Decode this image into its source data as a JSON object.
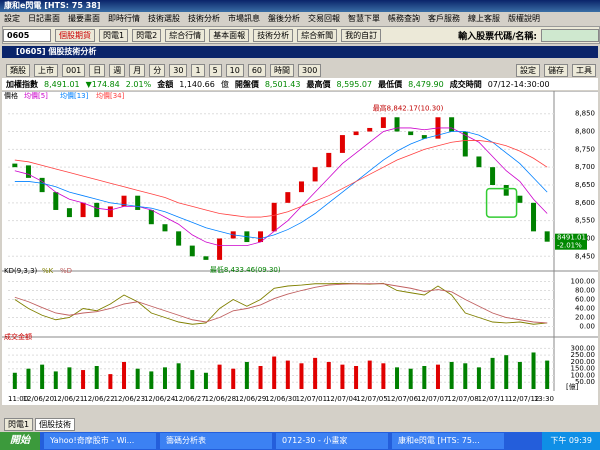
{
  "window": {
    "title": "康和e閃電 [HTS: 75 38]"
  },
  "menu": [
    "設定",
    "日記畫面",
    "撮要畫面",
    "即時行情",
    "技術選股",
    "技術分析",
    "市場訊息",
    "盤後分析",
    "交易回報",
    "智慧下單",
    "帳務查詢",
    "客戶服務",
    "線上客服",
    "版權說明"
  ],
  "toolbar": {
    "code": "0605",
    "buttons": [
      "個股期貨",
      "閃電1",
      "閃電2",
      "綜合行情",
      "基本面報",
      "技術分析",
      "綜合新聞",
      "我的自訂"
    ],
    "search_label": "輸入股票代碼/名稱:"
  },
  "panel": {
    "title": "[0605] 個股技術分析",
    "controls": [
      "類股",
      "上市",
      "001",
      "日",
      "週",
      "月",
      "分",
      "30",
      "1",
      "5",
      "10",
      "60",
      "時間",
      "300"
    ],
    "actions": [
      "設定",
      "儲存",
      "工具"
    ]
  },
  "quote": {
    "name": "加權指數",
    "price": "8,491.01",
    "change": "▼174.84",
    "pct": "2.01%",
    "amount_label": "金額",
    "amount": "1,140.66",
    "unit": "億",
    "open_label": "開盤價",
    "open": "8,501.43",
    "high_label": "最高價",
    "high": "8,595.07",
    "low_label": "最低價",
    "low": "8,479.90",
    "time_label": "成交時間",
    "time": "07/12-14:30:00"
  },
  "chart_data": [
    {
      "type": "candlestick",
      "legend_title": "價格",
      "open": [
        8710,
        8705,
        8670,
        8630,
        8585,
        8560,
        8600,
        8560,
        8590,
        8620,
        8580,
        8540,
        8520,
        8480,
        8450,
        8440,
        8500,
        8520,
        8490,
        8520,
        8600,
        8630,
        8660,
        8700,
        8740,
        8790,
        8800,
        8810,
        8840,
        8800,
        8790,
        8780,
        8840,
        8800,
        8730,
        8700,
        8650,
        8620,
        8600,
        8520
      ],
      "close": [
        8700,
        8670,
        8630,
        8580,
        8560,
        8600,
        8560,
        8590,
        8620,
        8580,
        8540,
        8520,
        8480,
        8450,
        8440,
        8500,
        8520,
        8490,
        8520,
        8600,
        8630,
        8660,
        8700,
        8740,
        8790,
        8800,
        8810,
        8840,
        8800,
        8790,
        8780,
        8840,
        8800,
        8730,
        8700,
        8650,
        8620,
        8600,
        8520,
        8491
      ],
      "series": [
        {
          "name": "均價[5]",
          "color": "#cc00cc",
          "values": [
            8690,
            8680,
            8660,
            8630,
            8610,
            8600,
            8585,
            8580,
            8590,
            8590,
            8580,
            8560,
            8540,
            8510,
            8490,
            8480,
            8480,
            8480,
            8490,
            8520,
            8550,
            8590,
            8630,
            8670,
            8710,
            8740,
            8770,
            8800,
            8810,
            8810,
            8805,
            8810,
            8810,
            8790,
            8770,
            8730,
            8690,
            8660,
            8610,
            8570
          ]
        },
        {
          "name": "均價[13]",
          "color": "#0080ff",
          "values": [
            8660,
            8660,
            8655,
            8645,
            8630,
            8620,
            8610,
            8600,
            8595,
            8590,
            8585,
            8575,
            8560,
            8545,
            8530,
            8520,
            8510,
            8505,
            8500,
            8510,
            8525,
            8545,
            8570,
            8600,
            8630,
            8660,
            8690,
            8720,
            8745,
            8765,
            8780,
            8790,
            8800,
            8800,
            8790,
            8770,
            8740,
            8710,
            8670,
            8630
          ]
        },
        {
          "name": "均價[34]",
          "color": "#ff4040",
          "values": [
            8720,
            8715,
            8705,
            8695,
            8685,
            8675,
            8665,
            8655,
            8645,
            8635,
            8625,
            8615,
            8600,
            8590,
            8580,
            8570,
            8565,
            8560,
            8560,
            8565,
            8575,
            8590,
            8605,
            8620,
            8640,
            8660,
            8680,
            8700,
            8720,
            8735,
            8750,
            8760,
            8770,
            8775,
            8775,
            8770,
            8760,
            8745,
            8725,
            8700
          ]
        }
      ],
      "ylim": [
        8420,
        8880
      ],
      "yticks": [
        {
          "value": 8450,
          "label": "8,450"
        },
        {
          "value": 8500,
          "label": "8,500"
        },
        {
          "value": 8550,
          "label": "8,550"
        },
        {
          "value": 8600,
          "label": "8,600"
        },
        {
          "value": 8650,
          "label": "8,650"
        },
        {
          "value": 8700,
          "label": "8,700"
        },
        {
          "value": 8750,
          "label": "8,750"
        },
        {
          "value": 8800,
          "label": "8,800"
        },
        {
          "value": 8850,
          "label": "8,850"
        }
      ],
      "annotations": [
        {
          "value": 8842.17,
          "label": "最高8,842.17(10.30)"
        },
        {
          "value": 8433.46,
          "label": "最低8,433.46(09.30)"
        }
      ],
      "last_label": [
        "8491.01",
        "-2.01%"
      ]
    },
    {
      "type": "line",
      "title": "KD(9,3,3)",
      "series": [
        {
          "name": "%K",
          "color": "#808000",
          "values": [
            60,
            40,
            25,
            15,
            20,
            40,
            35,
            50,
            70,
            55,
            30,
            20,
            10,
            5,
            8,
            40,
            60,
            45,
            60,
            85,
            90,
            92,
            95,
            95,
            96,
            95,
            94,
            96,
            80,
            75,
            70,
            90,
            70,
            30,
            20,
            10,
            8,
            10,
            5,
            8
          ]
        },
        {
          "name": "%D",
          "color": "#c06060",
          "values": [
            65,
            55,
            42,
            30,
            25,
            30,
            33,
            40,
            50,
            55,
            45,
            35,
            25,
            15,
            10,
            20,
            35,
            40,
            48,
            62,
            72,
            80,
            87,
            92,
            94,
            95,
            95,
            95,
            90,
            85,
            78,
            82,
            77,
            60,
            45,
            30,
            20,
            15,
            10,
            8
          ]
        }
      ],
      "ylim": [
        -10,
        110
      ],
      "yticks": [
        {
          "value": 0,
          "label": "0.00"
        },
        {
          "value": 20,
          "label": "20.00"
        },
        {
          "value": 40,
          "label": "40.00"
        },
        {
          "value": 60,
          "label": "60.00"
        },
        {
          "value": 80,
          "label": "80.00"
        },
        {
          "value": 100,
          "label": "100.00"
        }
      ]
    },
    {
      "type": "bar",
      "title": "成交金額",
      "unit": "[億]",
      "values": [
        120,
        150,
        180,
        130,
        160,
        140,
        170,
        110,
        200,
        150,
        130,
        160,
        190,
        140,
        120,
        180,
        150,
        200,
        170,
        240,
        210,
        190,
        230,
        200,
        180,
        170,
        210,
        190,
        160,
        150,
        170,
        180,
        200,
        190,
        160,
        230,
        250,
        200,
        270,
        210
      ],
      "ylim": [
        0,
        340
      ],
      "yticks": [
        {
          "value": 50,
          "label": "50.00"
        },
        {
          "value": 100,
          "label": "100.00"
        },
        {
          "value": 150,
          "label": "150.00"
        },
        {
          "value": 200,
          "label": "200.00"
        },
        {
          "value": 250,
          "label": "250.00"
        },
        {
          "value": 300,
          "label": "300.00"
        }
      ]
    }
  ],
  "x_labels": [
    "11:00",
    "12/06/20",
    "12/06/21",
    "12/06/22",
    "12/06/23",
    "12/06/24",
    "12/06/27",
    "12/06/28",
    "12/06/29",
    "12/06/30",
    "12/07/01",
    "12/07/04",
    "12/07/05",
    "12/07/06",
    "12/07/07",
    "12/07/08",
    "12/07/11",
    "12/07/12",
    "13:30"
  ],
  "tabs": [
    "閃電1",
    "個股技術"
  ],
  "taskbar": {
    "start": "開始",
    "items": [
      "Yahoo!奇摩股市 - Wi...",
      "籌碼分析表",
      "0712-30 - 小畫家",
      "康和e閃電 [HTS: 75..."
    ],
    "clock": "下午 09:39"
  }
}
